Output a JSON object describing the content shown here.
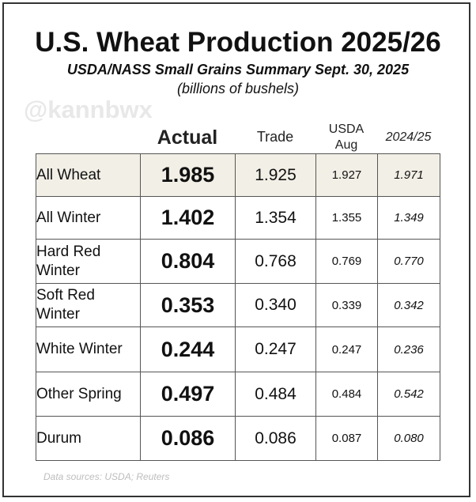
{
  "title": "U.S. Wheat Production 2025/26",
  "subtitle": "USDA/NASS Small Grains Summary Sept. 30, 2025",
  "units_note": "(billions of bushels)",
  "watermark": "@kannbwx",
  "footer": "Data sources: USDA; Reuters",
  "colors": {
    "highlight_row": "#f2efe6",
    "border": "#555555",
    "frame": "#333333"
  },
  "chart_data": {
    "type": "table",
    "title": "U.S. Wheat Production 2025/26",
    "columns": [
      "Actual",
      "Trade",
      "USDA Aug",
      "2024/25"
    ],
    "column_lines": [
      [
        "Actual"
      ],
      [
        "Trade"
      ],
      [
        "USDA",
        "Aug"
      ],
      [
        "2024/25"
      ]
    ],
    "rows": [
      {
        "label": "All Wheat",
        "label_lines": [
          "All Wheat"
        ],
        "values": [
          "1.985",
          "1.925",
          "1.927",
          "1.971"
        ],
        "highlight": true
      },
      {
        "label": "All Winter",
        "label_lines": [
          "All Winter"
        ],
        "values": [
          "1.402",
          "1.354",
          "1.355",
          "1.349"
        ],
        "highlight": false
      },
      {
        "label": "Hard Red Winter",
        "label_lines": [
          "Hard Red",
          "Winter"
        ],
        "values": [
          "0.804",
          "0.768",
          "0.769",
          "0.770"
        ],
        "highlight": false
      },
      {
        "label": "Soft Red Winter",
        "label_lines": [
          "Soft Red",
          "Winter"
        ],
        "values": [
          "0.353",
          "0.340",
          "0.339",
          "0.342"
        ],
        "highlight": false
      },
      {
        "label": "White Winter",
        "label_lines": [
          "White Winter"
        ],
        "values": [
          "0.244",
          "0.247",
          "0.247",
          "0.236"
        ],
        "highlight": false
      },
      {
        "label": "Other Spring",
        "label_lines": [
          "Other Spring"
        ],
        "values": [
          "0.497",
          "0.484",
          "0.484",
          "0.542"
        ],
        "highlight": false
      },
      {
        "label": "Durum",
        "label_lines": [
          "Durum"
        ],
        "values": [
          "0.086",
          "0.086",
          "0.087",
          "0.080"
        ],
        "highlight": false
      }
    ]
  }
}
